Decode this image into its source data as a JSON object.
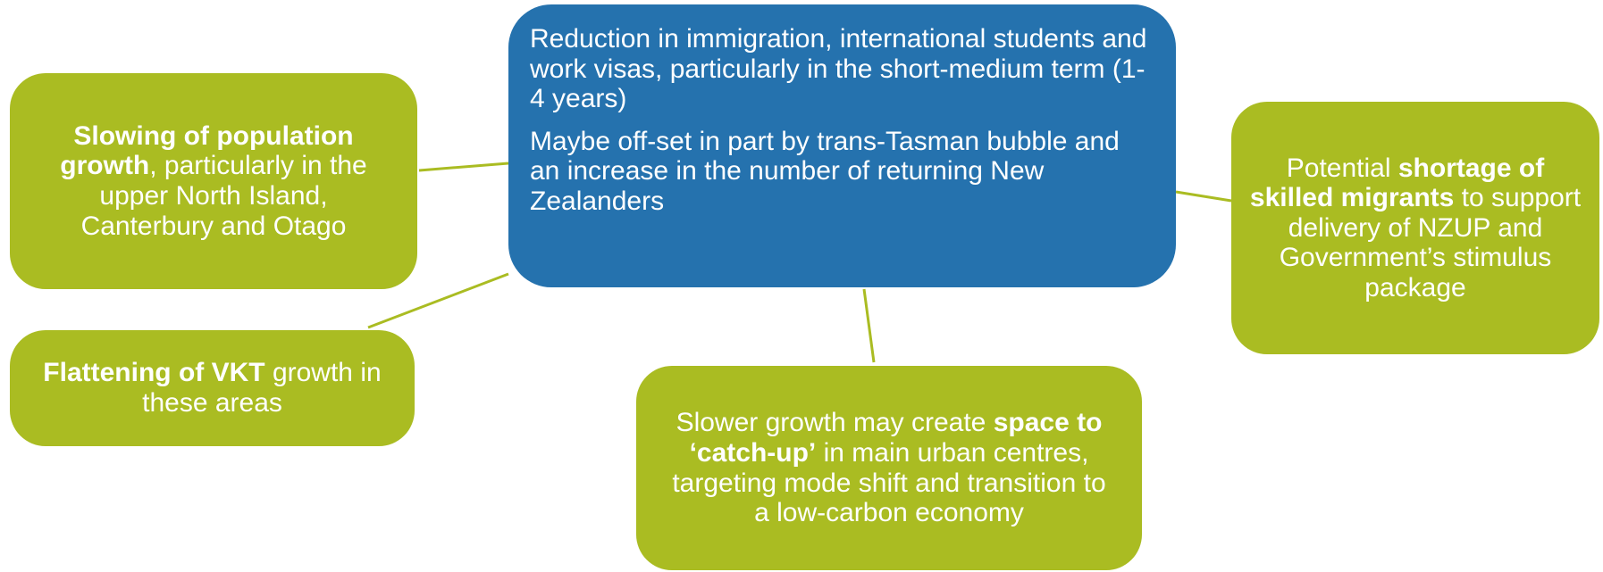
{
  "nodes": [
    {
      "paragraphs": [
        [
          {
            "text": "Reduction in immigration, international students and work visas, particularly in the short-medium term (1-4 years)"
          }
        ],
        [
          {
            "text": "Maybe off-set in part by trans-Tasman bubble and an increase in the number of returning New Zealanders"
          }
        ]
      ]
    },
    {
      "paragraphs": [
        [
          {
            "text": "Slowing of population growth",
            "bold": true
          },
          {
            "text": ", particularly in the upper North Island, Canterbury and Otago"
          }
        ]
      ]
    },
    {
      "paragraphs": [
        [
          {
            "text": "Flattening of VKT",
            "bold": true
          },
          {
            "text": " growth in these areas"
          }
        ]
      ]
    },
    {
      "paragraphs": [
        [
          {
            "text": "Potential "
          },
          {
            "text": "shortage of skilled migrants",
            "bold": true
          },
          {
            "text": " to support delivery of NZUP and Government’s stimulus package"
          }
        ]
      ]
    },
    {
      "paragraphs": [
        [
          {
            "text": "Slower growth may create "
          },
          {
            "text": "space to ‘catch-up’",
            "bold": true
          },
          {
            "text": " in main urban centres, targeting mode shift and transition to a low-carbon economy"
          }
        ]
      ]
    }
  ]
}
